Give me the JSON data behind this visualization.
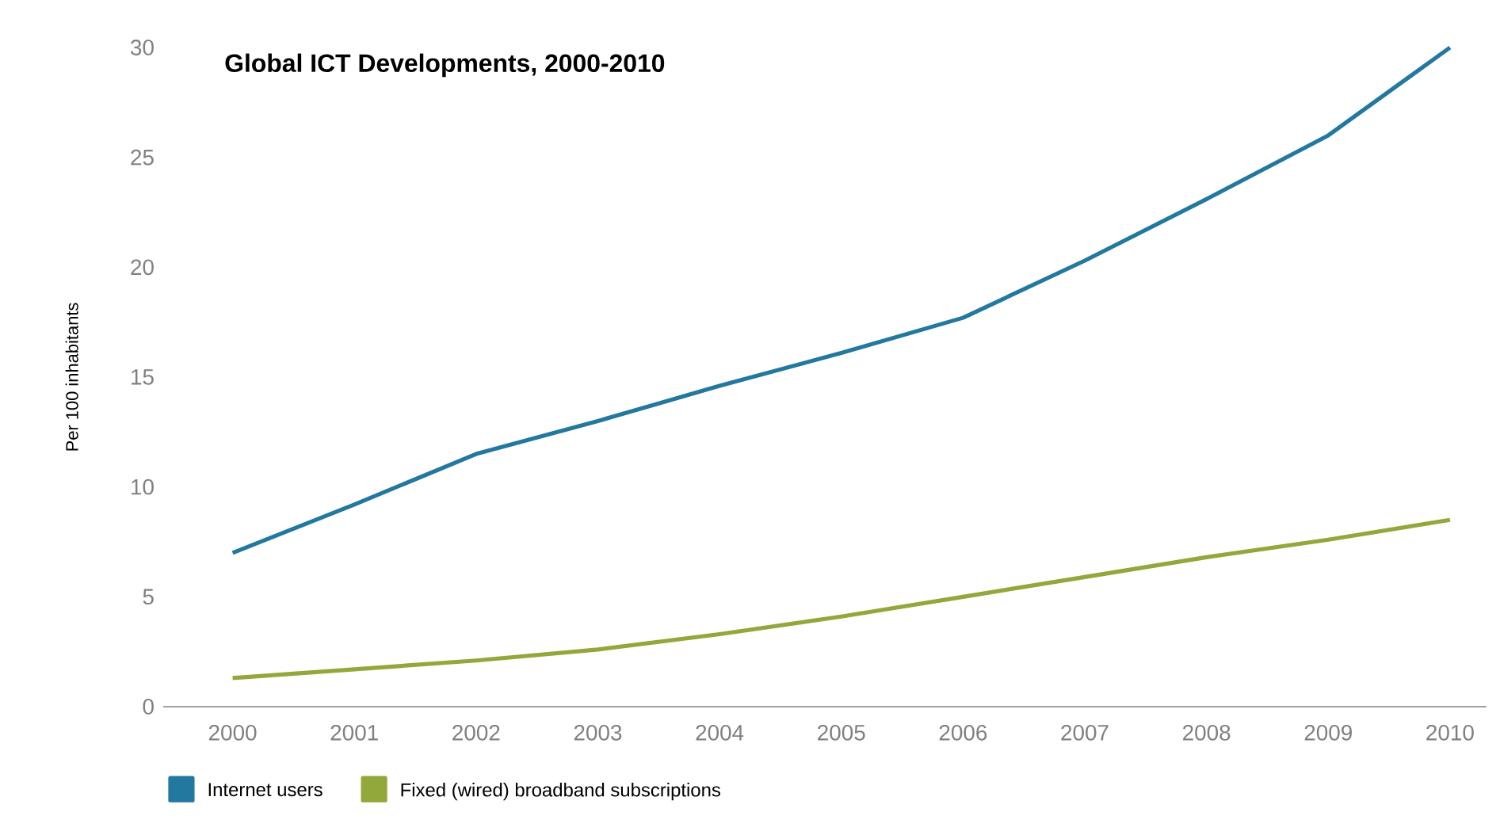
{
  "chart_data": {
    "type": "line",
    "title": "Global ICT Developments, 2000-2010",
    "ylabel": "Per 100 inhabitants",
    "x": [
      2000,
      2001,
      2002,
      2003,
      2004,
      2005,
      2006,
      2007,
      2008,
      2009,
      2010
    ],
    "series": [
      {
        "name": "Internet users",
        "color": "#23789f",
        "values": [
          7.0,
          9.2,
          11.5,
          13.0,
          14.6,
          16.1,
          17.7,
          20.3,
          23.1,
          26.0,
          30.0
        ]
      },
      {
        "name": "Fixed (wired) broadband subscriptions",
        "color": "#92a83a",
        "values": [
          1.3,
          1.7,
          2.1,
          2.6,
          3.3,
          4.1,
          5.0,
          5.9,
          6.8,
          7.6,
          8.5
        ]
      }
    ],
    "xlim": [
      1999.43,
      2010.3
    ],
    "ylim": [
      0,
      30
    ],
    "xticks": [
      2000,
      2001,
      2002,
      2003,
      2004,
      2005,
      2006,
      2007,
      2008,
      2009,
      2010
    ],
    "yticks": [
      0,
      5,
      10,
      15,
      20,
      25,
      30
    ],
    "grid": false,
    "legend": "bottom",
    "marker": "none",
    "line_style": "solid"
  }
}
